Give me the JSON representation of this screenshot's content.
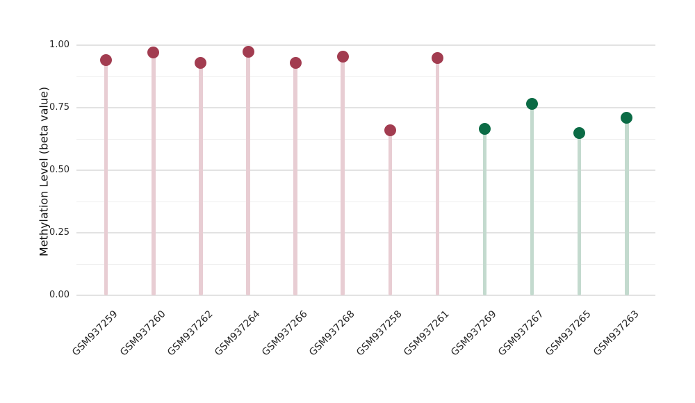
{
  "figure": {
    "background": "#ffffff"
  },
  "chart_data": {
    "type": "scatter",
    "variant": "lollipop",
    "title": "",
    "xlabel": "",
    "ylabel": "Methylation Level (beta value)",
    "ylim": [
      0,
      1
    ],
    "ytick_values": [
      0,
      0.25,
      0.5,
      0.75,
      1
    ],
    "ytick_labels": [
      "0.00",
      "0.25",
      "0.50",
      "0.75",
      "1.00"
    ],
    "minor_gridlines": [
      0.125,
      0.375,
      0.625,
      0.875
    ],
    "grid": "horizontal-only",
    "legend_position": "none",
    "x_label_rotation_deg": 45,
    "categories": [
      "GSM937259",
      "GSM937260",
      "GSM937262",
      "GSM937264",
      "GSM937266",
      "GSM937268",
      "GSM937258",
      "GSM937261",
      "GSM937269",
      "GSM937267",
      "GSM937265",
      "GSM937263"
    ],
    "points": [
      {
        "label": "GSM937259",
        "value": 0.94,
        "group": "maroon"
      },
      {
        "label": "GSM937260",
        "value": 0.97,
        "group": "maroon"
      },
      {
        "label": "GSM937262",
        "value": 0.93,
        "group": "maroon"
      },
      {
        "label": "GSM937264",
        "value": 0.975,
        "group": "maroon"
      },
      {
        "label": "GSM937266",
        "value": 0.93,
        "group": "maroon"
      },
      {
        "label": "GSM937268",
        "value": 0.955,
        "group": "maroon"
      },
      {
        "label": "GSM937258",
        "value": 0.66,
        "group": "maroon"
      },
      {
        "label": "GSM937261",
        "value": 0.95,
        "group": "maroon"
      },
      {
        "label": "GSM937269",
        "value": 0.665,
        "group": "green"
      },
      {
        "label": "GSM937267",
        "value": 0.765,
        "group": "green"
      },
      {
        "label": "GSM937265",
        "value": 0.65,
        "group": "green"
      },
      {
        "label": "GSM937263",
        "value": 0.71,
        "group": "green"
      }
    ],
    "colors": {
      "maroon": {
        "dot": "#A23C50",
        "stem": "#E8CDD3"
      },
      "green": {
        "dot": "#0B6B45",
        "stem": "#C3DACE"
      }
    }
  }
}
